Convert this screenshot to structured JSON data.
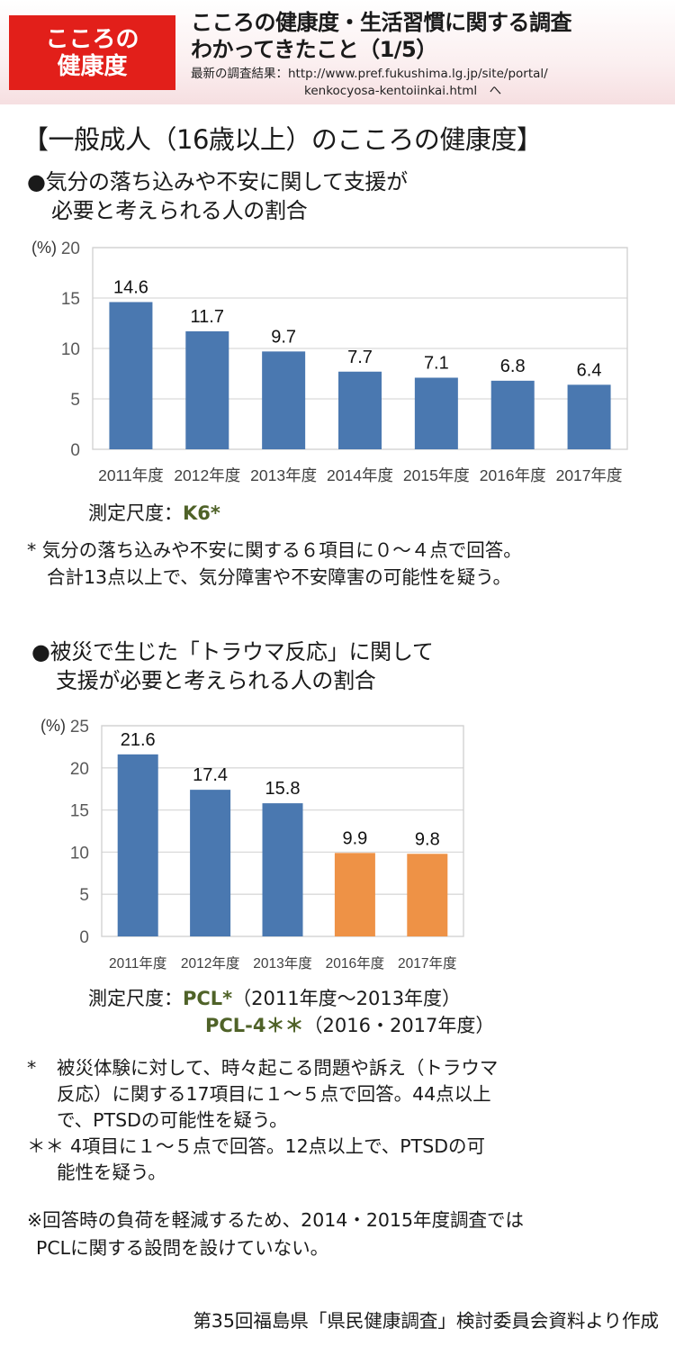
{
  "header": {
    "badge_line1": "こころの",
    "badge_line2": "健康度",
    "title_line1": "こころの健康度・生活習慣に関する調査",
    "title_line2": "わかってきたこと（1/5）",
    "link_label": "最新の調査結果：",
    "link_line1": "http://www.pref.fukushima.lg.jp/site/portal/",
    "link_line2": "kenkocyosa-kentoiinkai.html　へ"
  },
  "section_title": "【一般成人（16歳以上）のこころの健康度】",
  "section1": {
    "question_line1": "●気分の落ち込みや不安に関して支援が",
    "question_line2": "必要と考えられる人の割合",
    "scale_label": "測定尺度：",
    "scale_value": "K6*",
    "note_line1": "* 気分の落ち込みや不安に関する６項目に０～４点で回答。",
    "note_line2": "合計13点以上で、気分障害や不安障害の可能性を疑う。"
  },
  "section2": {
    "question_line1": "●被災で生じた「トラウマ反応」に関して",
    "question_line2": "支援が必要と考えられる人の割合",
    "scale_label": "測定尺度：",
    "scale_value1": "PCL*",
    "scale_period1": "（2011年度～2013年度）",
    "scale_value2": "PCL-4＊＊",
    "scale_period2": "（2016・2017年度）",
    "note1_mark": "*",
    "note1_line1": "被災体験に対して、時々起こる問題や訴え（トラウマ",
    "note1_line2": "反応）に関する17項目に１～５点で回答。44点以上",
    "note1_line3": "で、PTSDの可能性を疑う。",
    "note2_mark": "＊＊",
    "note2_line1": "4項目に１～５点で回答。12点以上で、PTSDの可",
    "note2_line2": "能性を疑う。",
    "remark_line1": "※回答時の負荷を軽減するため、2014・2015年度調査では",
    "remark_line2": "PCLに関する設問を設けていない。"
  },
  "source": "第35回福島県「県民健康調査」検討委員会資料より作成",
  "colors": {
    "blue": "#4a78b0",
    "orange": "#ee9246",
    "accent_green": "#4f6228",
    "badge_red": "#e21f1a"
  },
  "chart_data": [
    {
      "type": "bar",
      "title": "気分の落ち込みや不安に関して支援が必要と考えられる人の割合",
      "ylabel": "(%)",
      "ylim": [
        0,
        20
      ],
      "yticks": [
        0,
        5,
        10,
        15,
        20
      ],
      "grid": true,
      "categories": [
        "2011年度",
        "2012年度",
        "2013年度",
        "2014年度",
        "2015年度",
        "2016年度",
        "2017年度"
      ],
      "values": [
        14.6,
        11.7,
        9.7,
        7.7,
        7.1,
        6.8,
        6.4
      ],
      "labels": [
        "14.6",
        "11.7",
        "9.7",
        "7.7",
        "7.1",
        "6.8",
        "6.4"
      ],
      "bar_colors": [
        "#4a78b0",
        "#4a78b0",
        "#4a78b0",
        "#4a78b0",
        "#4a78b0",
        "#4a78b0",
        "#4a78b0"
      ]
    },
    {
      "type": "bar",
      "title": "被災で生じた「トラウマ反応」に関して支援が必要と考えられる人の割合",
      "ylabel": "(%)",
      "ylim": [
        0,
        25
      ],
      "yticks": [
        0,
        5,
        10,
        15,
        20,
        25
      ],
      "grid": true,
      "categories": [
        "2011年度",
        "2012年度",
        "2013年度",
        "2016年度",
        "2017年度"
      ],
      "values": [
        21.6,
        17.4,
        15.8,
        9.9,
        9.8
      ],
      "labels": [
        "21.6",
        "17.4",
        "15.8",
        "9.9",
        "9.8"
      ],
      "bar_colors": [
        "#4a78b0",
        "#4a78b0",
        "#4a78b0",
        "#ee9246",
        "#ee9246"
      ]
    }
  ]
}
